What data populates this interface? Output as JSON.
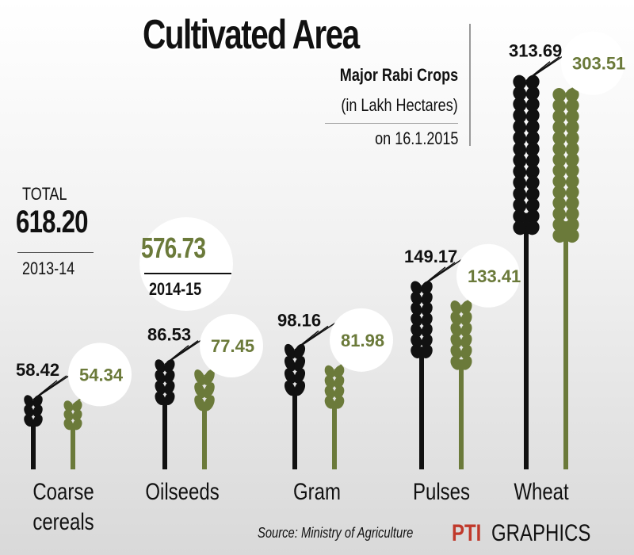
{
  "header": {
    "title": "Cultivated Area",
    "subtitle": "Major Rabi Crops",
    "unit": "(in Lakh Hectares)",
    "date": "on 16.1.2015"
  },
  "totals": {
    "label": "TOTAL",
    "value_2013_14": "618.20",
    "year_2013_14": "2013-14",
    "value_2014_15": "576.73",
    "year_2014_15": "2014-15"
  },
  "footer": {
    "source": "Source: Ministry of Agriculture",
    "brand_pti": "PTI",
    "brand_graphics": "GRAPHICS"
  },
  "colors": {
    "series_2013": "#111111",
    "series_2014": "#6b7a3a",
    "label_circle": "#ffffff",
    "brand": "#c0392b"
  },
  "chart_data": {
    "type": "bar",
    "title": "Cultivated Area",
    "subtitle": "Major Rabi Crops",
    "ylabel": "(in Lakh Hectares)",
    "categories": [
      "Coarse cereals",
      "Oilseeds",
      "Gram",
      "Pulses",
      "Wheat"
    ],
    "category_lines": [
      [
        "Coarse",
        "cereals"
      ],
      [
        "Oilseeds"
      ],
      [
        "Gram"
      ],
      [
        "Pulses"
      ],
      [
        "Wheat"
      ]
    ],
    "series": [
      {
        "name": "2013-14",
        "values": [
          58.42,
          86.53,
          98.16,
          149.17,
          313.69
        ],
        "labels": [
          "58.42",
          "86.53",
          "98.16",
          "149.17",
          "313.69"
        ]
      },
      {
        "name": "2014-15",
        "values": [
          54.34,
          77.45,
          81.98,
          133.41,
          303.51
        ],
        "labels": [
          "54.34",
          "77.45",
          "81.98",
          "133.41",
          "303.51"
        ]
      }
    ],
    "ylim": [
      0,
      330
    ],
    "grid": false,
    "legend": "none"
  }
}
